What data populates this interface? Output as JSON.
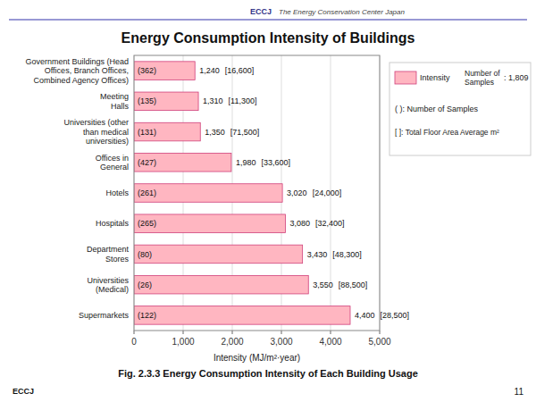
{
  "chart_data": {
    "type": "bar",
    "orientation": "horizontal",
    "title": "Energy Consumption Intensity of Buildings",
    "xlabel": "Intensity (MJ/m²·year)",
    "categories": [
      "Government Buildings (Head\nOffices, Branch Offices,\nCombined Agency Offices)",
      "Meeting\nHalls",
      "Universities (other\nthan medical\nuniversities)",
      "Offices in\nGeneral",
      "Hotels",
      "Hospitals",
      "Department\nStores",
      "Universities\n(Medical)",
      "Supermarkets"
    ],
    "values": [
      1240,
      1310,
      1350,
      1980,
      3020,
      3080,
      3430,
      3550,
      4400
    ],
    "value_labels": [
      "1,240",
      "1,310",
      "1,350",
      "1,980",
      "3,020",
      "3,080",
      "3,430",
      "3,550",
      "4,400"
    ],
    "sample_labels": [
      "(362)",
      "(135)",
      "(131)",
      "(427)",
      "(261)",
      "(265)",
      "(80)",
      "(26)",
      "(122)"
    ],
    "floor_area_labels": [
      "[16,600]",
      "[11,300]",
      "[71,500]",
      "[33,600]",
      "[24,000]",
      "[32,400]",
      "[48,300]",
      "[88,500]",
      "[28,500]"
    ],
    "data_labels": true,
    "color": "#FFB6C1",
    "xlim": [
      0,
      5000
    ],
    "xticks": [
      0,
      {
        "value": 1000,
        "label": "1,000"
      },
      {
        "value": 2000,
        "label": "2,000"
      },
      {
        "value": 3000,
        "label": "3,000"
      },
      {
        "value": 4000,
        "label": "4,000"
      },
      {
        "value": 5000,
        "label": "5,000"
      }
    ],
    "grid": true,
    "annotations": [
      "ECCJ",
      "The Energy Conservation Center Japan",
      "Intensity",
      "Number of\nSamples",
      ": 1,809",
      "( ): Number of Samples",
      "[ ]: Total Floor Area Average m²",
      "Fig. 2.3.3 Energy Consumption Intensity of Each Building Usage",
      "ECCJ",
      "11"
    ]
  }
}
